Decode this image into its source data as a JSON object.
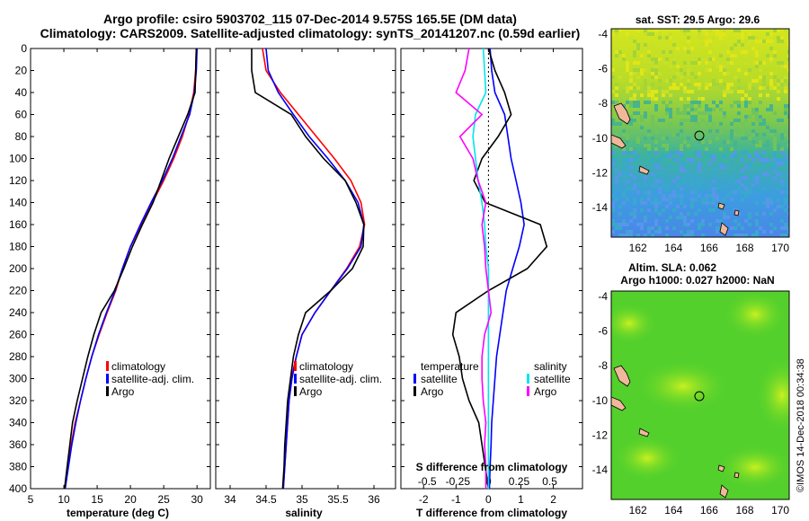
{
  "header": {
    "line1": "Argo profile: csiro 5903702_115 07-Dec-2014 9.575S 165.5E (DM data)",
    "line2": "Climatology: CARS2009. Satellite-adjusted climatology: synTS_20141207.nc (0.59d earlier)"
  },
  "maps": {
    "sst_title": "sat. SST: 29.5 Argo: 29.6",
    "sla_title1": "Altim. SLA: 0.062",
    "sla_title2": "Argo h1000: 0.027 h2000: NaN",
    "lon_ticks": [
      "162",
      "164",
      "166",
      "168",
      "170"
    ],
    "lat_ticks": [
      "-4",
      "-6",
      "-8",
      "-10",
      "-12",
      "-14"
    ],
    "credit": "©IMOS 14-Dec-2018 00:34:38"
  },
  "chart_data": [
    {
      "type": "line",
      "panel": "temperature",
      "xlabel": "temperature (deg C)",
      "ylabel": "depth",
      "xlim": [
        5,
        32
      ],
      "ylim": [
        400,
        0
      ],
      "xticks": [
        5,
        10,
        15,
        20,
        25,
        30
      ],
      "yticks": [
        0,
        20,
        40,
        60,
        80,
        100,
        120,
        140,
        160,
        180,
        200,
        220,
        240,
        260,
        280,
        300,
        320,
        340,
        360,
        380,
        400
      ],
      "legend": [
        "climatology",
        "satellite-adj. clim.",
        "Argo"
      ],
      "series": [
        {
          "name": "climatology",
          "color": "#ff0000",
          "depth": [
            0,
            20,
            40,
            60,
            80,
            100,
            120,
            140,
            160,
            180,
            200,
            220,
            240,
            260,
            280,
            300,
            320,
            340,
            360,
            380,
            400
          ],
          "values": [
            29.9,
            29.8,
            29.5,
            28.8,
            27.8,
            26.5,
            25.0,
            23.3,
            21.6,
            20.0,
            18.8,
            17.8,
            16.5,
            15.3,
            14.2,
            13.3,
            12.5,
            11.7,
            11.1,
            10.6,
            10.2
          ]
        },
        {
          "name": "satellite-adj. clim.",
          "color": "#0000ff",
          "depth": [
            0,
            20,
            40,
            60,
            80,
            100,
            120,
            140,
            160,
            180,
            200,
            220,
            240,
            260,
            280,
            300,
            320,
            340,
            360,
            380,
            400
          ],
          "values": [
            30.0,
            29.9,
            29.6,
            28.9,
            27.6,
            26.3,
            24.8,
            23.1,
            21.5,
            20.0,
            18.8,
            17.7,
            16.4,
            15.2,
            14.2,
            13.3,
            12.5,
            11.8,
            11.2,
            10.7,
            10.2
          ]
        },
        {
          "name": "Argo",
          "color": "#000000",
          "depth": [
            0,
            20,
            40,
            60,
            80,
            100,
            120,
            140,
            160,
            180,
            200,
            220,
            240,
            260,
            280,
            300,
            320,
            340,
            360,
            380,
            400
          ],
          "values": [
            29.9,
            29.8,
            29.7,
            28.6,
            27.2,
            25.8,
            24.6,
            23.4,
            21.8,
            20.3,
            19.0,
            17.6,
            15.6,
            14.5,
            13.6,
            12.8,
            12.0,
            11.3,
            10.9,
            10.5,
            10.1
          ]
        }
      ]
    },
    {
      "type": "line",
      "panel": "salinity",
      "xlabel": "salinity",
      "xlim": [
        33.8,
        36.3
      ],
      "ylim": [
        400,
        0
      ],
      "xticks": [
        34,
        34.5,
        35,
        35.5,
        36
      ],
      "legend": [
        "climatology",
        "satellite-adj. clim.",
        "Argo"
      ],
      "series": [
        {
          "name": "climatology",
          "color": "#ff0000",
          "depth": [
            0,
            20,
            40,
            60,
            80,
            100,
            120,
            140,
            160,
            180,
            200,
            220,
            240,
            260,
            280,
            300,
            320,
            340,
            360,
            380,
            400
          ],
          "values": [
            34.45,
            34.5,
            34.7,
            34.95,
            35.2,
            35.45,
            35.68,
            35.82,
            35.87,
            35.8,
            35.62,
            35.4,
            35.18,
            35.0,
            34.92,
            34.85,
            34.82,
            34.8,
            34.78,
            34.76,
            34.74
          ]
        },
        {
          "name": "satellite-adj. clim.",
          "color": "#0000ff",
          "depth": [
            0,
            20,
            40,
            60,
            80,
            100,
            120,
            140,
            160,
            180,
            200,
            220,
            240,
            260,
            280,
            300,
            320,
            340,
            360,
            380,
            400
          ],
          "values": [
            34.5,
            34.53,
            34.67,
            34.88,
            35.1,
            35.36,
            35.6,
            35.78,
            35.86,
            35.82,
            35.63,
            35.4,
            35.18,
            35.0,
            34.92,
            34.86,
            34.82,
            34.8,
            34.78,
            34.76,
            34.74
          ]
        },
        {
          "name": "Argo",
          "color": "#000000",
          "depth": [
            0,
            20,
            40,
            60,
            80,
            100,
            120,
            140,
            160,
            180,
            200,
            220,
            240,
            260,
            280,
            300,
            320,
            340,
            360,
            380,
            400
          ],
          "values": [
            34.3,
            34.3,
            34.35,
            34.85,
            35.05,
            35.3,
            35.6,
            35.75,
            35.86,
            35.85,
            35.7,
            35.4,
            35.05,
            34.95,
            34.88,
            34.84,
            34.8,
            34.78,
            34.76,
            34.75,
            34.73
          ]
        }
      ]
    },
    {
      "type": "line",
      "panel": "difference",
      "xlabel": "T difference from climatology",
      "xlabel_top": "S difference from climatology",
      "xlim": [
        -2.7,
        2.9
      ],
      "ylim": [
        400,
        0
      ],
      "xticks": [
        -2,
        -1,
        0,
        1,
        2
      ],
      "xticks_s": [
        "-0.5",
        "-0.25",
        "0",
        "0.25",
        "0.5"
      ],
      "legend_temperature": [
        "temperature",
        "satellite",
        "Argo"
      ],
      "legend_salinity": [
        "salinity",
        "satellite",
        "Argo"
      ],
      "series": [
        {
          "name": "T satellite",
          "color": "#0000ff",
          "depth": [
            0,
            20,
            40,
            60,
            80,
            100,
            120,
            140,
            160,
            180,
            200,
            220,
            240,
            260,
            280,
            300,
            320,
            340,
            360,
            380,
            400
          ],
          "values": [
            0.05,
            0.1,
            0.2,
            0.5,
            0.6,
            0.7,
            0.85,
            1.0,
            1.1,
            0.95,
            0.75,
            0.55,
            0.45,
            0.35,
            0.25,
            0.2,
            0.15,
            0.1,
            0.08,
            0.05,
            0.03
          ]
        },
        {
          "name": "T Argo",
          "color": "#000000",
          "depth": [
            0,
            20,
            40,
            60,
            80,
            100,
            120,
            140,
            160,
            180,
            200,
            220,
            240,
            260,
            280,
            300,
            320,
            340,
            360,
            380,
            400
          ],
          "values": [
            0.0,
            0.2,
            0.5,
            0.7,
            0.3,
            -0.2,
            -0.45,
            -0.1,
            1.6,
            1.8,
            1.2,
            0.0,
            -1.0,
            -1.1,
            -0.9,
            -0.8,
            -0.6,
            -0.3,
            -0.2,
            -0.1,
            0.0
          ]
        },
        {
          "name": "S satellite",
          "color": "#00e5ee",
          "depth": [
            0,
            20,
            40,
            60,
            80,
            100,
            120,
            140,
            160,
            180,
            200,
            220,
            240,
            260,
            280,
            300,
            320,
            340,
            360,
            380,
            400
          ],
          "values": [
            -0.04,
            -0.03,
            -0.02,
            -0.1,
            -0.12,
            -0.1,
            -0.08,
            -0.05,
            -0.03,
            -0.02,
            0.0,
            0.0,
            0.0,
            0.0,
            0.0,
            0.0,
            0.0,
            0.0,
            0.0,
            0.0,
            0.0
          ]
        },
        {
          "name": "S Argo",
          "color": "#ff00ff",
          "depth": [
            0,
            20,
            40,
            60,
            80,
            100,
            120,
            140,
            160,
            180,
            200,
            220,
            240,
            260,
            280,
            300,
            320,
            340,
            360,
            380,
            400
          ],
          "values": [
            -0.15,
            -0.18,
            -0.25,
            -0.05,
            -0.22,
            -0.12,
            -0.08,
            -0.02,
            -0.05,
            -0.03,
            -0.02,
            0.0,
            0.02,
            -0.03,
            -0.05,
            -0.05,
            -0.04,
            -0.02,
            -0.03,
            -0.02,
            -0.02
          ]
        }
      ]
    }
  ]
}
